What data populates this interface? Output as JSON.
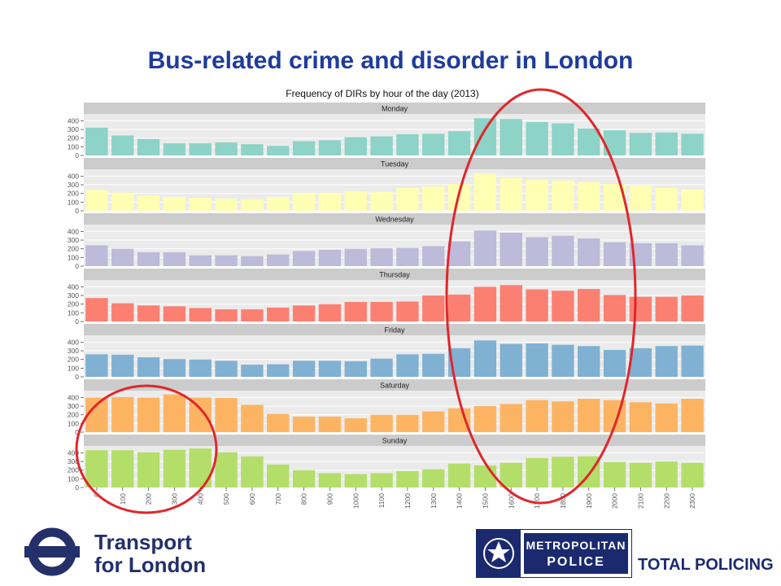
{
  "slide": {
    "title": "Bus-related crime and disorder in London"
  },
  "logos": {
    "tfl_line1": "Transport",
    "tfl_line2": "for London",
    "met_line1": "METROPOLITAN",
    "met_line2": "POLICE",
    "met_tagline": "TOTAL POLICING"
  },
  "colors": {
    "tfl_blue": "#24306a",
    "met_blue": "#1b2a6e",
    "title_blue": "#1f3b9c",
    "highlight_red": "#e0262b"
  },
  "chart_data": {
    "type": "bar",
    "title": "Frequency of DIRs by hour of the day (2013)",
    "categories": [
      "0",
      "100",
      "200",
      "300",
      "400",
      "500",
      "600",
      "700",
      "800",
      "900",
      "1000",
      "1100",
      "1200",
      "1300",
      "1400",
      "1500",
      "1600",
      "1700",
      "1800",
      "1900",
      "2000",
      "2100",
      "2200",
      "2300"
    ],
    "yticks": [
      0,
      100,
      200,
      300,
      400
    ],
    "ylim": [
      0,
      460
    ],
    "grid": true,
    "facets": [
      {
        "name": "Monday",
        "color": "#8dd3c7",
        "values": [
          320,
          230,
          190,
          140,
          140,
          150,
          130,
          110,
          165,
          175,
          210,
          220,
          245,
          250,
          280,
          430,
          420,
          385,
          370,
          310,
          290,
          260,
          265,
          250
        ]
      },
      {
        "name": "Tuesday",
        "color": "#ffffb3",
        "values": [
          240,
          210,
          175,
          160,
          150,
          140,
          135,
          160,
          200,
          205,
          225,
          215,
          265,
          280,
          310,
          430,
          380,
          355,
          350,
          330,
          310,
          290,
          265,
          245
        ]
      },
      {
        "name": "Wednesday",
        "color": "#bebada",
        "values": [
          240,
          200,
          160,
          160,
          125,
          125,
          115,
          135,
          175,
          190,
          200,
          205,
          210,
          230,
          285,
          410,
          385,
          335,
          350,
          320,
          275,
          265,
          265,
          240
        ]
      },
      {
        "name": "Thursday",
        "color": "#fb8072",
        "values": [
          270,
          210,
          185,
          175,
          155,
          140,
          140,
          160,
          185,
          200,
          225,
          225,
          230,
          300,
          310,
          400,
          420,
          370,
          355,
          375,
          305,
          285,
          285,
          300
        ]
      },
      {
        "name": "Friday",
        "color": "#80b1d3",
        "values": [
          260,
          255,
          225,
          205,
          200,
          185,
          140,
          145,
          185,
          185,
          180,
          210,
          260,
          265,
          330,
          420,
          380,
          385,
          370,
          355,
          310,
          330,
          355,
          360
        ]
      },
      {
        "name": "Saturday",
        "color": "#fdb462",
        "values": [
          400,
          405,
          400,
          435,
          400,
          395,
          315,
          210,
          180,
          180,
          160,
          200,
          200,
          240,
          275,
          300,
          325,
          370,
          355,
          385,
          370,
          345,
          330,
          385
        ]
      },
      {
        "name": "Sunday",
        "color": "#b3de69",
        "values": [
          430,
          430,
          405,
          435,
          450,
          405,
          360,
          265,
          200,
          165,
          155,
          165,
          190,
          210,
          275,
          255,
          285,
          340,
          355,
          360,
          295,
          285,
          300,
          285
        ]
      }
    ],
    "annotations": [
      {
        "type": "ellipse",
        "color": "#e0262b",
        "region": "hours 1400-1900, all days"
      },
      {
        "type": "ellipse",
        "color": "#e0262b",
        "region": "hours 100-500, Saturday and Sunday"
      }
    ]
  }
}
